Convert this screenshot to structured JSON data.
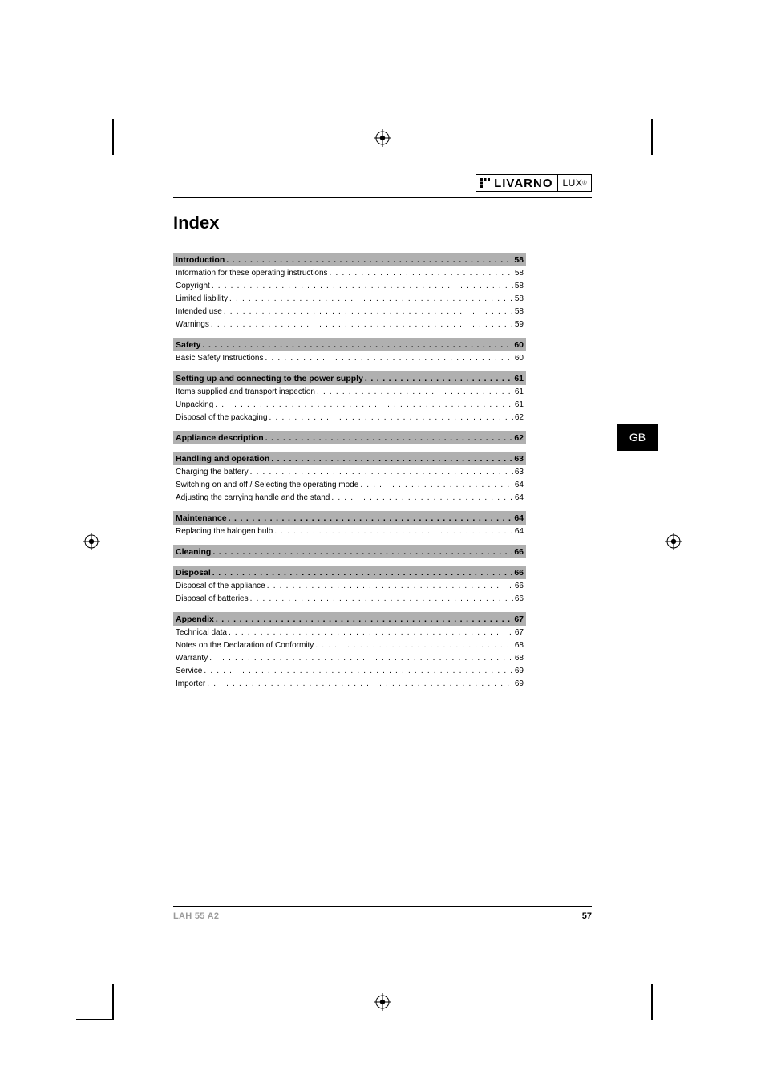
{
  "brand": {
    "main": "LIVARNO",
    "sub": "LUX"
  },
  "lang_tab": "GB",
  "index_title": "Index",
  "footer": {
    "model": "LAH 55 A2",
    "page": "57"
  },
  "colors": {
    "section_bar_bg": "#b0b0b0",
    "footer_model_color": "#9a9a9a",
    "text": "#000000",
    "page_bg": "#ffffff"
  },
  "typography": {
    "index_title_size_pt": 17,
    "section_size_pt": 8,
    "sub_size_pt": 7.5,
    "footer_size_pt": 8.5
  },
  "toc": [
    {
      "kind": "section",
      "label": "Introduction",
      "page": "58"
    },
    {
      "kind": "sub",
      "label": "Information for these operating instructions",
      "page": "58"
    },
    {
      "kind": "sub",
      "label": "Copyright",
      "page": "58"
    },
    {
      "kind": "sub",
      "label": "Limited liability",
      "page": "58"
    },
    {
      "kind": "sub",
      "label": "Intended use",
      "page": "58"
    },
    {
      "kind": "sub",
      "label": "Warnings",
      "page": "59"
    },
    {
      "kind": "section",
      "label": "Safety",
      "page": "60"
    },
    {
      "kind": "sub",
      "label": "Basic Safety Instructions",
      "page": "60"
    },
    {
      "kind": "section",
      "label": "Setting up and connecting to the power supply",
      "page": "61"
    },
    {
      "kind": "sub",
      "label": "Items supplied and transport inspection",
      "page": "61"
    },
    {
      "kind": "sub",
      "label": "Unpacking",
      "page": "61"
    },
    {
      "kind": "sub",
      "label": "Disposal of the packaging",
      "page": "62"
    },
    {
      "kind": "section",
      "label": "Appliance description",
      "page": "62"
    },
    {
      "kind": "section",
      "label": "Handling and operation",
      "page": "63"
    },
    {
      "kind": "sub",
      "label": "Charging the battery",
      "page": "63"
    },
    {
      "kind": "sub",
      "label": "Switching on and off / Selecting the operating mode",
      "page": "64"
    },
    {
      "kind": "sub",
      "label": "Adjusting the carrying handle and the stand",
      "page": "64"
    },
    {
      "kind": "section",
      "label": "Maintenance",
      "page": "64"
    },
    {
      "kind": "sub",
      "label": "Replacing the halogen bulb",
      "page": "64"
    },
    {
      "kind": "section",
      "label": "Cleaning",
      "page": "66"
    },
    {
      "kind": "section",
      "label": "Disposal",
      "page": "66"
    },
    {
      "kind": "sub",
      "label": "Disposal of the appliance",
      "page": "66"
    },
    {
      "kind": "sub",
      "label": "Disposal of batteries",
      "page": "66"
    },
    {
      "kind": "section",
      "label": "Appendix",
      "page": "67"
    },
    {
      "kind": "sub",
      "label": "Technical data",
      "page": "67"
    },
    {
      "kind": "sub",
      "label": "Notes on the Declaration of Conformity",
      "page": "68"
    },
    {
      "kind": "sub",
      "label": "Warranty",
      "page": "68"
    },
    {
      "kind": "sub",
      "label": "Service",
      "page": "69"
    },
    {
      "kind": "sub",
      "label": "Importer",
      "page": "69"
    }
  ]
}
